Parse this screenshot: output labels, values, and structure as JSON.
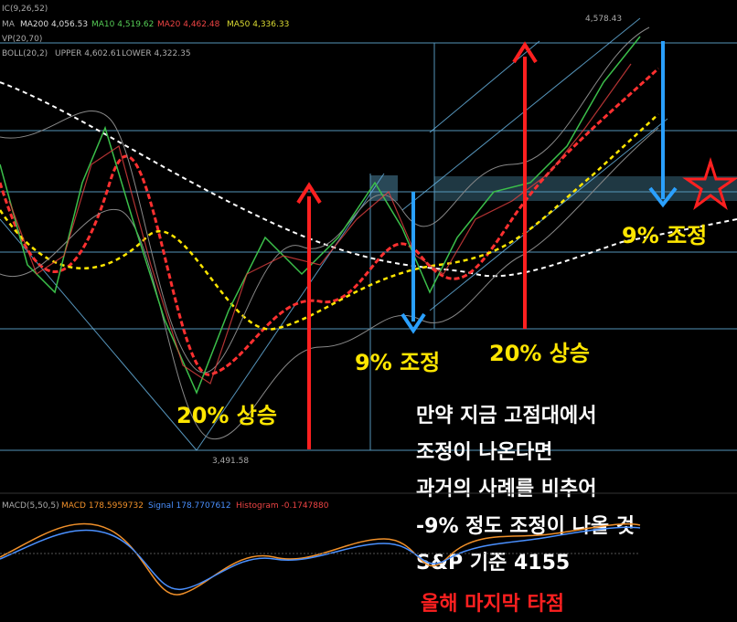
{
  "indicators": {
    "ichimoku": "IC(9,26,52)",
    "ma_label": "MA",
    "ma200": "MA200 4,056.53",
    "ma10": "MA10 4,519.62",
    "ma20": "MA20 4,462.48",
    "ma50": "MA50 4,336.33",
    "vp": "VP(20,70)",
    "boll": "BOLL(20,2)",
    "boll_upper": "UPPER 4,602.61",
    "boll_lower": "LOWER 4,322.35"
  },
  "price_labels": {
    "high": "4,578.43",
    "low": "3,491.58"
  },
  "annotations": [
    "20% 상승",
    "9% 조정",
    "20% 상승",
    "9% 조정"
  ],
  "note": {
    "lines": [
      "만약 지금 고점대에서",
      "조정이 나온다면",
      "과거의 사례를 비추어",
      "-9% 정도 조정이 나올 것",
      "S&P 기준 4155"
    ],
    "highlight": "올해 마지막 타점"
  },
  "macd": {
    "label": "MACD(5,50,5)",
    "macd": "MACD 178.5959732",
    "signal": "Signal 178.7707612",
    "histogram": "Histogram -0.1747880"
  }
}
